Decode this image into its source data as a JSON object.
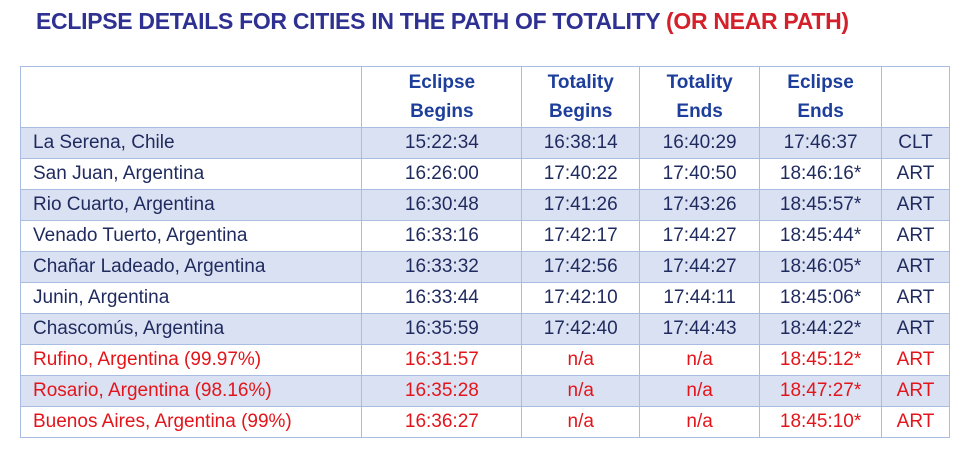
{
  "title": {
    "main": "ECLIPSE DETAILS FOR CITIES IN THE PATH OF TOTALITY",
    "note": "(OR NEAR PATH)"
  },
  "table": {
    "header": [
      [],
      [
        "Eclipse",
        "Begins"
      ],
      [
        "Totality",
        "Begins"
      ],
      [
        "Totality",
        "Ends"
      ],
      [
        "Eclipse",
        "Ends"
      ],
      []
    ],
    "rows": [
      {
        "cells": [
          "La Serena, Chile",
          "15:22:34",
          "16:38:14",
          "16:40:29",
          "17:46:37",
          "CLT"
        ],
        "color": "#1f2a5e"
      },
      {
        "cells": [
          "San Juan, Argentina",
          "16:26:00",
          "17:40:22",
          "17:40:50",
          "18:46:16*",
          "ART"
        ],
        "color": "#1f2a5e"
      },
      {
        "cells": [
          "Rio Cuarto, Argentina",
          "16:30:48",
          "17:41:26",
          "17:43:26",
          "18:45:57*",
          "ART"
        ],
        "color": "#1f2a5e"
      },
      {
        "cells": [
          "Venado Tuerto, Argentina",
          "16:33:16",
          "17:42:17",
          "17:44:27",
          "18:45:44*",
          "ART"
        ],
        "color": "#1f2a5e"
      },
      {
        "cells": [
          "Chañar Ladeado, Argentina",
          "16:33:32",
          "17:42:56",
          "17:44:27",
          "18:46:05*",
          "ART"
        ],
        "color": "#1f2a5e"
      },
      {
        "cells": [
          "Junin, Argentina",
          "16:33:44",
          "17:42:10",
          "17:44:11",
          "18:45:06*",
          "ART"
        ],
        "color": "#1f2a5e"
      },
      {
        "cells": [
          "Chascomús, Argentina",
          "16:35:59",
          "17:42:40",
          "17:44:43",
          "18:44:22*",
          "ART"
        ],
        "color": "#1f2a5e"
      },
      {
        "cells": [
          "Rufino, Argentina (99.97%)",
          "16:31:57",
          "n/a",
          "n/a",
          "18:45:12*",
          "ART"
        ],
        "color": "#e3151b"
      },
      {
        "cells": [
          "Rosario, Argentina (98.16%)",
          "16:35:28",
          "n/a",
          "n/a",
          "18:47:27*",
          "ART"
        ],
        "color": "#e3151b"
      },
      {
        "cells": [
          "Buenos Aires, Argentina (99%)",
          "16:36:27",
          "n/a",
          "n/a",
          "18:45:10*",
          "ART"
        ],
        "color": "#e3151b"
      }
    ]
  }
}
